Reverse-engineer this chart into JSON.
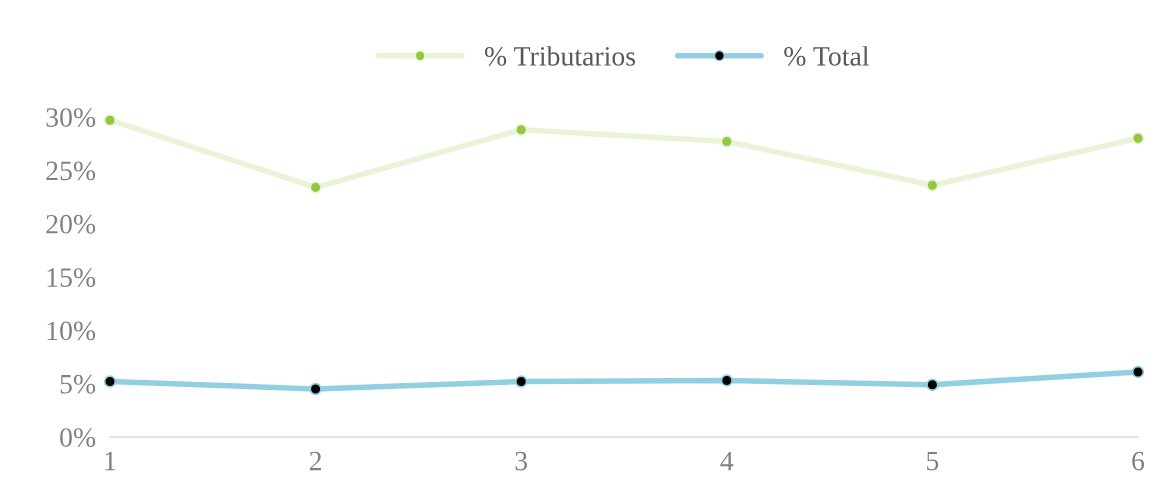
{
  "chart_data": {
    "type": "line",
    "categories": [
      "1",
      "2",
      "3",
      "4",
      "5",
      "6"
    ],
    "series": [
      {
        "name": "% Tributarios",
        "color": "#e9f3d7",
        "colors": [
          "#92c83e",
          "#92c83e",
          "#92c83e",
          "#92c83e",
          "#92c83e",
          "#92c83e"
        ],
        "values": [
          29.7,
          23.4,
          28.8,
          27.7,
          23.6,
          28.0
        ]
      },
      {
        "name": "% Total",
        "color": "#92cfe0",
        "colors": [
          "#000000",
          "#000000",
          "#000000",
          "#000000",
          "#000000",
          "#000000"
        ],
        "values": [
          5.2,
          4.5,
          5.2,
          5.3,
          4.9,
          6.1
        ]
      }
    ],
    "ylim": [
      0,
      30
    ],
    "yticks": [
      {
        "value": 0,
        "label": "0%"
      },
      {
        "value": 5,
        "label": "5%"
      },
      {
        "value": 10,
        "label": "10%"
      },
      {
        "value": 15,
        "label": "15%"
      },
      {
        "value": 20,
        "label": "20%"
      },
      {
        "value": 25,
        "label": "25%"
      },
      {
        "value": 30,
        "label": "30%"
      }
    ],
    "grid": false,
    "legend": "top",
    "marker": "circle",
    "line_style": "solid"
  }
}
